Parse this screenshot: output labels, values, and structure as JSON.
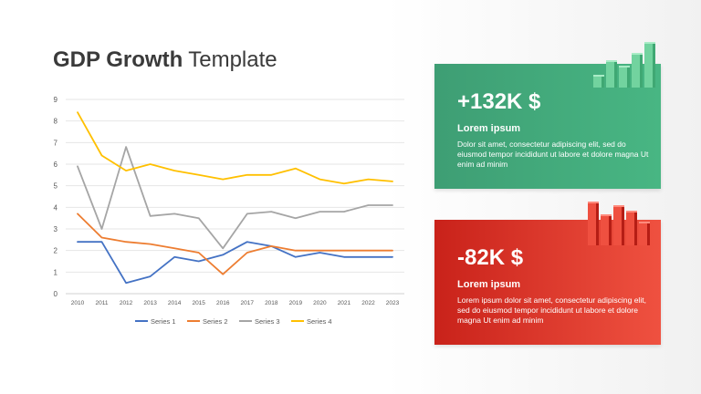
{
  "title": {
    "bold": "GDP Growth",
    "light": "Template"
  },
  "cards": [
    {
      "value": "+132K $",
      "heading": "Lorem ipsum",
      "body": "Dolor sit amet, consectetur adipiscing elit, sed do eiusmod tempor incididunt ut labore et dolore magna Ut enim ad minim",
      "color": "#48b683",
      "icon": "rising-bars-icon"
    },
    {
      "value": "-82K $",
      "heading": "Lorem ipsum",
      "body": "Lorem ipsum dolor sit amet, consectetur adipiscing elit, sed do eiusmod tempor incididunt ut labore et dolore magna Ut enim ad minim",
      "color": "#e84a3a",
      "icon": "falling-bars-icon"
    }
  ],
  "chart_data": {
    "type": "line",
    "x": [
      "2010",
      "2011",
      "2012",
      "2013",
      "2014",
      "2015",
      "2016",
      "2017",
      "2018",
      "2019",
      "2020",
      "2021",
      "2022",
      "2023"
    ],
    "ylim": [
      0,
      9
    ],
    "yticks": [
      0,
      1,
      2,
      3,
      4,
      5,
      6,
      7,
      8,
      9
    ],
    "grid": true,
    "legend": "bottom",
    "series": [
      {
        "name": "Series 1",
        "color": "#4472c4",
        "values": [
          2.4,
          2.4,
          0.5,
          0.8,
          1.7,
          1.5,
          1.8,
          2.4,
          2.2,
          1.7,
          1.9,
          1.7,
          1.7,
          1.7
        ]
      },
      {
        "name": "Series 2",
        "color": "#ed7d31",
        "values": [
          3.7,
          2.6,
          2.4,
          2.3,
          2.1,
          1.9,
          0.9,
          1.9,
          2.2,
          2.0,
          2.0,
          2.0,
          2.0,
          2.0
        ]
      },
      {
        "name": "Series 3",
        "color": "#a5a5a5",
        "values": [
          5.9,
          3.0,
          6.8,
          3.6,
          3.7,
          3.5,
          2.1,
          3.7,
          3.8,
          3.5,
          3.8,
          3.8,
          4.1,
          4.1
        ]
      },
      {
        "name": "Series 4",
        "color": "#ffc000",
        "values": [
          8.4,
          6.4,
          5.7,
          6.0,
          5.7,
          5.5,
          5.3,
          5.5,
          5.5,
          5.8,
          5.3,
          5.1,
          5.3,
          5.2
        ]
      }
    ]
  }
}
